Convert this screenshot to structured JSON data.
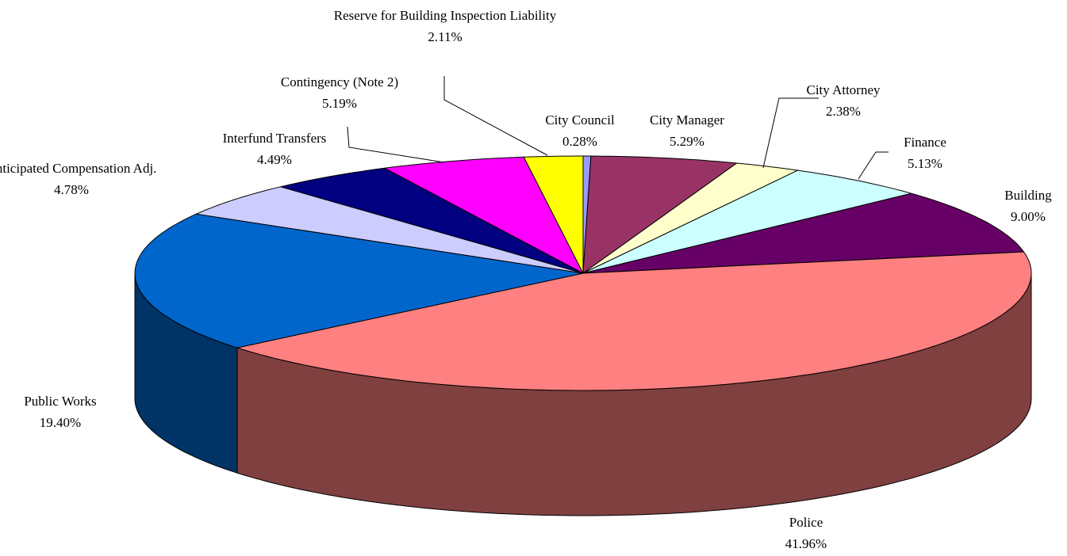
{
  "chart_data": {
    "type": "pie",
    "3d": true,
    "categories": [
      "City Council",
      "City Manager",
      "City Attorney",
      "Finance",
      "Building",
      "Police",
      "Public Works",
      "Anticipated Compensation Adj.",
      "Interfund Transfers",
      "Contingency (Note 2)",
      "Reserve for Building Inspection Liability"
    ],
    "values": [
      0.28,
      5.29,
      2.38,
      5.13,
      9.0,
      41.96,
      19.4,
      4.78,
      4.49,
      5.19,
      2.11
    ],
    "value_labels": [
      "0.28%",
      "5.29%",
      "2.38%",
      "5.13%",
      "9.00%",
      "41.96%",
      "19.40%",
      "4.78%",
      "4.49%",
      "5.19%",
      "2.11%"
    ],
    "colors": [
      "#9999ff",
      "#993366",
      "#ffffcc",
      "#ccffff",
      "#660066",
      "#ff8080",
      "#0066cc",
      "#ccccff",
      "#000080",
      "#ff00ff",
      "#ffff00"
    ]
  }
}
